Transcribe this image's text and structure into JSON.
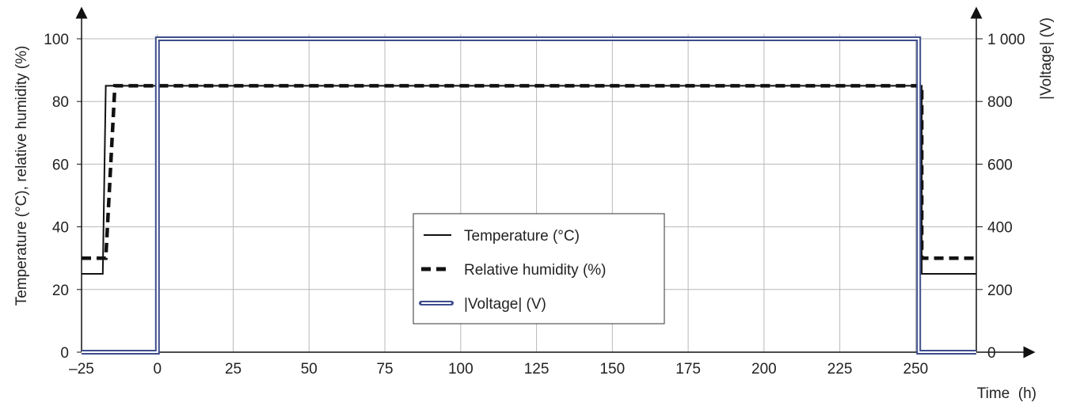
{
  "chart_data": {
    "type": "line",
    "xlabel": "Time  (h)",
    "ylabel_left": "Temperature  (°C), relative humidity  (%)",
    "ylabel_right": "|Voltage|  (V)",
    "xlim": [
      -25,
      270
    ],
    "ylim_left": [
      0,
      100
    ],
    "ylim_right": [
      0,
      1000
    ],
    "x_ticks": [
      -25,
      0,
      25,
      50,
      75,
      100,
      125,
      150,
      175,
      200,
      225,
      250
    ],
    "x_tick_labels": [
      "–25",
      "0",
      "25",
      "50",
      "75",
      "100",
      "125",
      "150",
      "175",
      "200",
      "225",
      "250"
    ],
    "y_left_ticks": [
      0,
      20,
      40,
      60,
      80,
      100
    ],
    "y_left_tick_labels": [
      "0",
      "20",
      "40",
      "60",
      "80",
      "100"
    ],
    "y_right_ticks": [
      0,
      200,
      400,
      600,
      800,
      1000
    ],
    "y_right_tick_labels": [
      "0",
      "200",
      "400",
      "600",
      "800",
      "1 000"
    ],
    "grid": true,
    "legend_position": "center",
    "series": [
      {
        "name": "Temperature (°C)",
        "axis": "left",
        "style": "solid",
        "color": "#111111",
        "x": [
          -25,
          -18,
          -17,
          252,
          252,
          270
        ],
        "y": [
          25,
          25,
          85,
          85,
          25,
          25
        ]
      },
      {
        "name": "Relative humidity (%)",
        "axis": "left",
        "style": "dashed",
        "color": "#111111",
        "x": [
          -25,
          -17,
          -14,
          252,
          252,
          270
        ],
        "y": [
          30,
          30,
          85,
          85,
          30,
          30
        ]
      },
      {
        "name": "|Voltage| (V)",
        "axis": "right",
        "style": "double",
        "color": "#3d4d8c",
        "x": [
          -25,
          0,
          0,
          251,
          251,
          270
        ],
        "y": [
          0,
          0,
          1000,
          1000,
          0,
          0
        ]
      }
    ]
  }
}
